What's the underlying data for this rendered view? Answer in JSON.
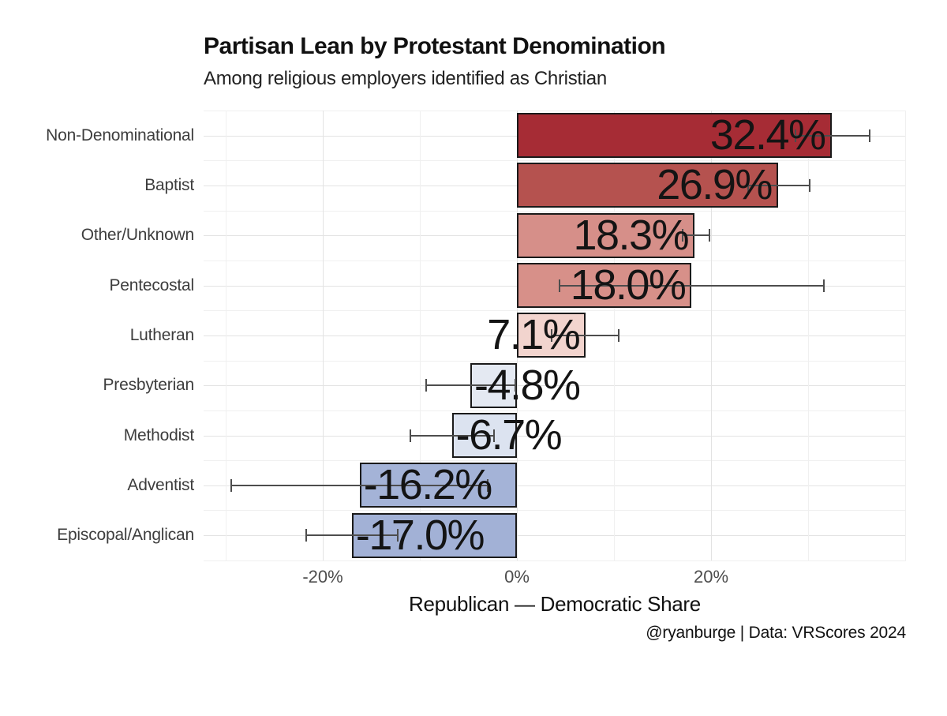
{
  "chart_data": {
    "type": "bar",
    "orientation": "horizontal",
    "title": "Partisan Lean by Protestant Denomination",
    "subtitle": "Among religious employers identified as Christian",
    "xlabel": "Republican — Democratic Share",
    "caption": "@ryanburge | Data: VRScores 2024",
    "categories": [
      "Non-Denominational",
      "Baptist",
      "Other/Unknown",
      "Pentecostal",
      "Lutheran",
      "Presbyterian",
      "Methodist",
      "Adventist",
      "Episcopal/Anglican"
    ],
    "values": [
      32.4,
      26.9,
      18.3,
      18.0,
      7.1,
      -4.8,
      -6.7,
      -16.2,
      -17.0
    ],
    "value_labels": [
      "32.4%",
      "26.9%",
      "18.3%",
      "18.0%",
      "7.1%",
      "-4.8%",
      "-6.7%",
      "-16.2%",
      "-17.0%"
    ],
    "error_low": [
      28.6,
      23.7,
      17.0,
      4.3,
      3.5,
      -9.4,
      -11.1,
      -29.5,
      -21.8
    ],
    "error_high": [
      36.4,
      30.2,
      19.9,
      31.7,
      10.6,
      -0.1,
      -2.3,
      -2.9,
      -12.2
    ],
    "bar_colors": [
      "#a62c35",
      "#b5524f",
      "#d68f89",
      "#d79089",
      "#f2d4ce",
      "#e4e9f2",
      "#dce3f0",
      "#a4b3d7",
      "#a2b1d6"
    ],
    "x_ticks": [
      {
        "value": -20,
        "label": "-20%"
      },
      {
        "value": 0,
        "label": "0%"
      },
      {
        "value": 20,
        "label": "20%"
      }
    ],
    "x_gridlines_major": [
      -20,
      0,
      20
    ],
    "x_gridlines_minor": [
      -30,
      -10,
      10,
      30,
      40
    ],
    "xlim": [
      -32.3,
      40.1
    ],
    "grid": true,
    "legend": "none",
    "colors": {
      "background": "#ffffff",
      "bar_border": "#1a1a1a",
      "error_bar": "#4d4d4d",
      "grid_major": "#e3e3e3",
      "grid_minor": "#f0f0f0",
      "title": "#111111",
      "category_label": "#3d3d3d",
      "tick_label": "#4d4d4d"
    }
  }
}
